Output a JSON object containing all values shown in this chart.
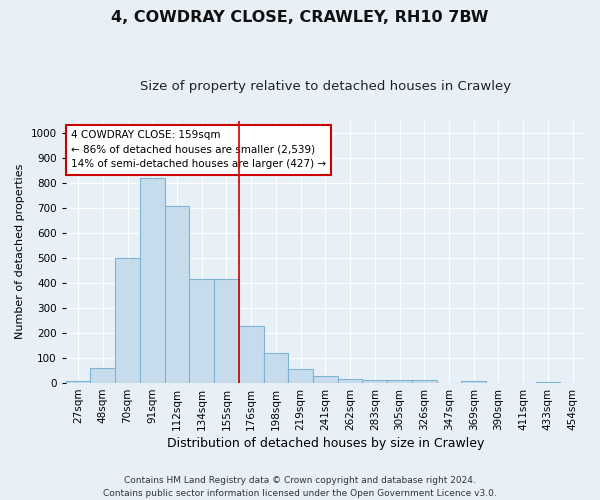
{
  "title": "4, COWDRAY CLOSE, CRAWLEY, RH10 7BW",
  "subtitle": "Size of property relative to detached houses in Crawley",
  "xlabel": "Distribution of detached houses by size in Crawley",
  "ylabel": "Number of detached properties",
  "categories": [
    "27sqm",
    "48sqm",
    "70sqm",
    "91sqm",
    "112sqm",
    "134sqm",
    "155sqm",
    "176sqm",
    "198sqm",
    "219sqm",
    "241sqm",
    "262sqm",
    "283sqm",
    "305sqm",
    "326sqm",
    "347sqm",
    "369sqm",
    "390sqm",
    "411sqm",
    "433sqm",
    "454sqm"
  ],
  "values": [
    10,
    60,
    500,
    820,
    710,
    415,
    415,
    230,
    120,
    55,
    30,
    15,
    12,
    12,
    12,
    0,
    8,
    0,
    0,
    5,
    0
  ],
  "bar_color": "#c6dcec",
  "bar_edge_color": "#7fb3d3",
  "vline_color": "#cc0000",
  "ylim": [
    0,
    1050
  ],
  "yticks": [
    0,
    100,
    200,
    300,
    400,
    500,
    600,
    700,
    800,
    900,
    1000
  ],
  "annotation_text": "4 COWDRAY CLOSE: 159sqm\n← 86% of detached houses are smaller (2,539)\n14% of semi-detached houses are larger (427) →",
  "annotation_box_color": "#ffffff",
  "annotation_box_edge_color": "#cc0000",
  "footer_line1": "Contains HM Land Registry data © Crown copyright and database right 2024.",
  "footer_line2": "Contains public sector information licensed under the Open Government Licence v3.0.",
  "bg_color": "#e8f0f7",
  "grid_color": "#ffffff",
  "title_fontsize": 11.5,
  "subtitle_fontsize": 9.5,
  "ylabel_fontsize": 8,
  "xlabel_fontsize": 9,
  "tick_fontsize": 7.5,
  "footer_fontsize": 6.5,
  "annot_fontsize": 7.5
}
